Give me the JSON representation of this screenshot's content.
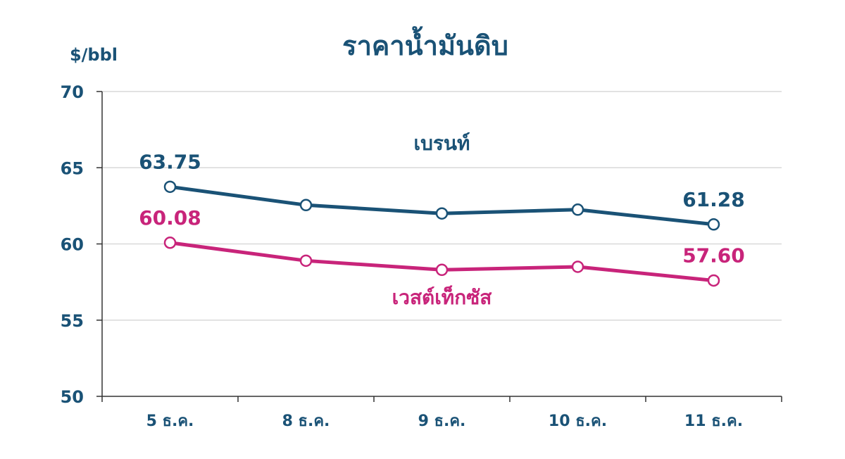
{
  "chart_data": {
    "type": "line",
    "title": "ราคาน้ำมันดิบ",
    "ylabel": "$/bbl",
    "xlabel": "",
    "categories": [
      "5 ธ.ค.",
      "8 ธ.ค.",
      "9 ธ.ค.",
      "10 ธ.ค.",
      "11 ธ.ค."
    ],
    "ylim": [
      50,
      70
    ],
    "yticks": [
      50,
      55,
      60,
      65,
      70
    ],
    "grid": true,
    "series": [
      {
        "name": "เบรนท์",
        "color": "#1a5276",
        "values": [
          63.75,
          62.55,
          62.0,
          62.25,
          61.28
        ],
        "data_labels": [
          {
            "index": 0,
            "text": "63.75"
          },
          {
            "index": 4,
            "text": "61.28"
          }
        ]
      },
      {
        "name": "เวสต์เท็กซัส",
        "color": "#c8247a",
        "values": [
          60.08,
          58.9,
          58.3,
          58.5,
          57.6
        ],
        "data_labels": [
          {
            "index": 0,
            "text": "60.08"
          },
          {
            "index": 4,
            "text": "57.60"
          }
        ]
      }
    ]
  }
}
